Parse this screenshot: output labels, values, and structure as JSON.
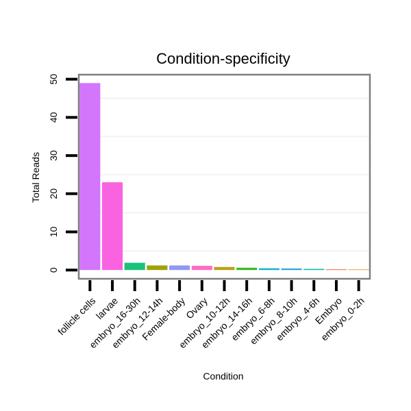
{
  "chart_data": {
    "type": "bar",
    "title": "Condition-specificity",
    "xlabel": "Condition",
    "ylabel": "Total Reads",
    "ylim": [
      -2.3,
      51.2
    ],
    "yticks": [
      0,
      10,
      20,
      30,
      40,
      50
    ],
    "grid": true,
    "categories": [
      "follicle cells",
      "larvae",
      "embryo_16-30h",
      "embryo_12-14h",
      "Female-body",
      "Ovary",
      "embryo_10-12h",
      "embryo_14-16h",
      "embryo_6-8h",
      "embryo_8-10h",
      "embryo_4-6h",
      "Embryo",
      "embryo_0-2h"
    ],
    "values": [
      49,
      23,
      1.9,
      1.2,
      1.2,
      1.1,
      0.8,
      0.6,
      0.45,
      0.4,
      0.3,
      0.2,
      0
    ],
    "colors": [
      "#d376fc",
      "#f963e0",
      "#1ac27a",
      "#9ea309",
      "#8f98f7",
      "#ff6cc0",
      "#bda116",
      "#3dba21",
      "#12b5cc",
      "#25a8d9",
      "#15bfae",
      "#fb6f5f",
      "#e48b00"
    ]
  }
}
